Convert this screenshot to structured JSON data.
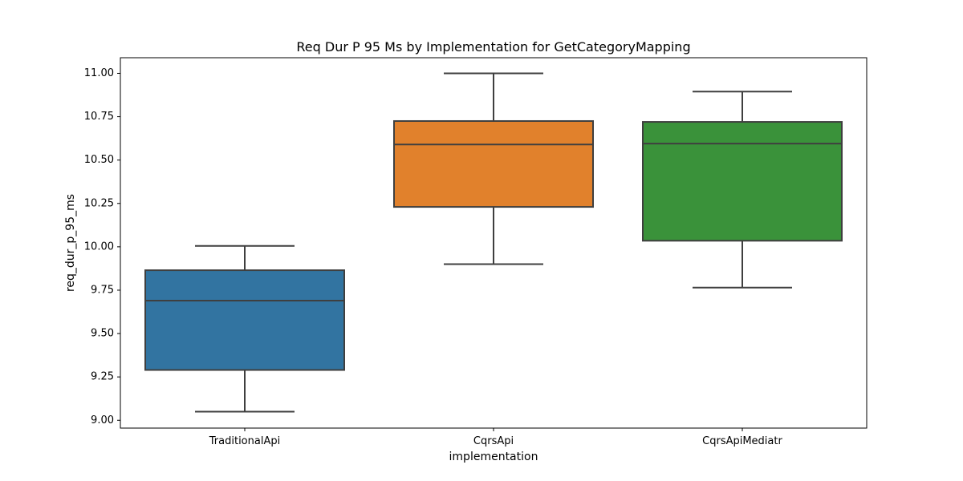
{
  "chart_data": {
    "type": "box",
    "title": "Req Dur P 95 Ms by Implementation for GetCategoryMapping",
    "xlabel": "implementation",
    "ylabel": "req_dur_p_95_ms",
    "ylim": [
      8.955,
      11.09
    ],
    "yticks": [
      "9.00",
      "9.25",
      "9.50",
      "9.75",
      "10.00",
      "10.25",
      "10.50",
      "10.75",
      "11.00"
    ],
    "grid": false,
    "categories": [
      {
        "name": "TraditionalApi",
        "whisker_low": 9.05,
        "q1": 9.29,
        "median": 9.69,
        "q3": 9.865,
        "whisker_high": 10.005,
        "color": "#3274a1"
      },
      {
        "name": "CqrsApi",
        "whisker_low": 9.9,
        "q1": 10.23,
        "median": 10.59,
        "q3": 10.725,
        "whisker_high": 11.0,
        "color": "#e1812c"
      },
      {
        "name": "CqrsApiMediatr",
        "whisker_low": 9.765,
        "q1": 10.035,
        "median": 10.595,
        "q3": 10.72,
        "whisker_high": 10.895,
        "color": "#3a923a"
      }
    ]
  }
}
